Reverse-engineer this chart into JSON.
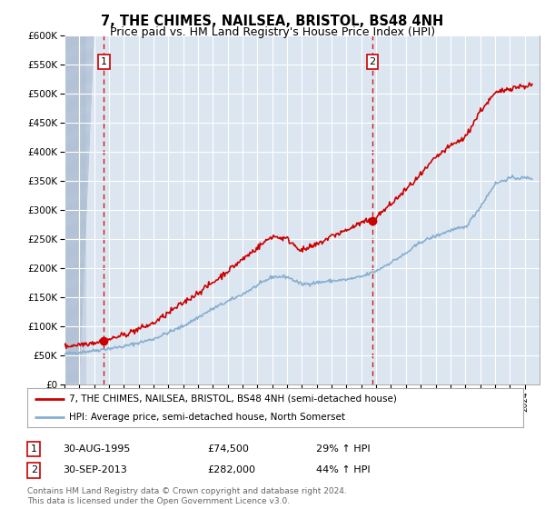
{
  "title1": "7, THE CHIMES, NAILSEA, BRISTOL, BS48 4NH",
  "title2": "Price paid vs. HM Land Registry's House Price Index (HPI)",
  "legend_line1": "7, THE CHIMES, NAILSEA, BRISTOL, BS48 4NH (semi-detached house)",
  "legend_line2": "HPI: Average price, semi-detached house, North Somerset",
  "sale1_date": "30-AUG-1995",
  "sale1_price": "£74,500",
  "sale1_hpi": "29% ↑ HPI",
  "sale2_date": "30-SEP-2013",
  "sale2_price": "£282,000",
  "sale2_hpi": "44% ↑ HPI",
  "footer": "Contains HM Land Registry data © Crown copyright and database right 2024.\nThis data is licensed under the Open Government Licence v3.0.",
  "ylim": [
    0,
    600000
  ],
  "yticks": [
    0,
    50000,
    100000,
    150000,
    200000,
    250000,
    300000,
    350000,
    400000,
    450000,
    500000,
    550000,
    600000
  ],
  "ytick_labels": [
    "£0",
    "£50K",
    "£100K",
    "£150K",
    "£200K",
    "£250K",
    "£300K",
    "£350K",
    "£400K",
    "£450K",
    "£500K",
    "£550K",
    "£600K"
  ],
  "bg_color": "#dce6f1",
  "hatch_color": "#c8d4e3",
  "grid_color": "#ffffff",
  "red_color": "#cc0000",
  "blue_color": "#88aed0",
  "sale1_year": 1995.67,
  "sale2_year": 2013.75,
  "xmin": 1993,
  "xmax": 2025
}
